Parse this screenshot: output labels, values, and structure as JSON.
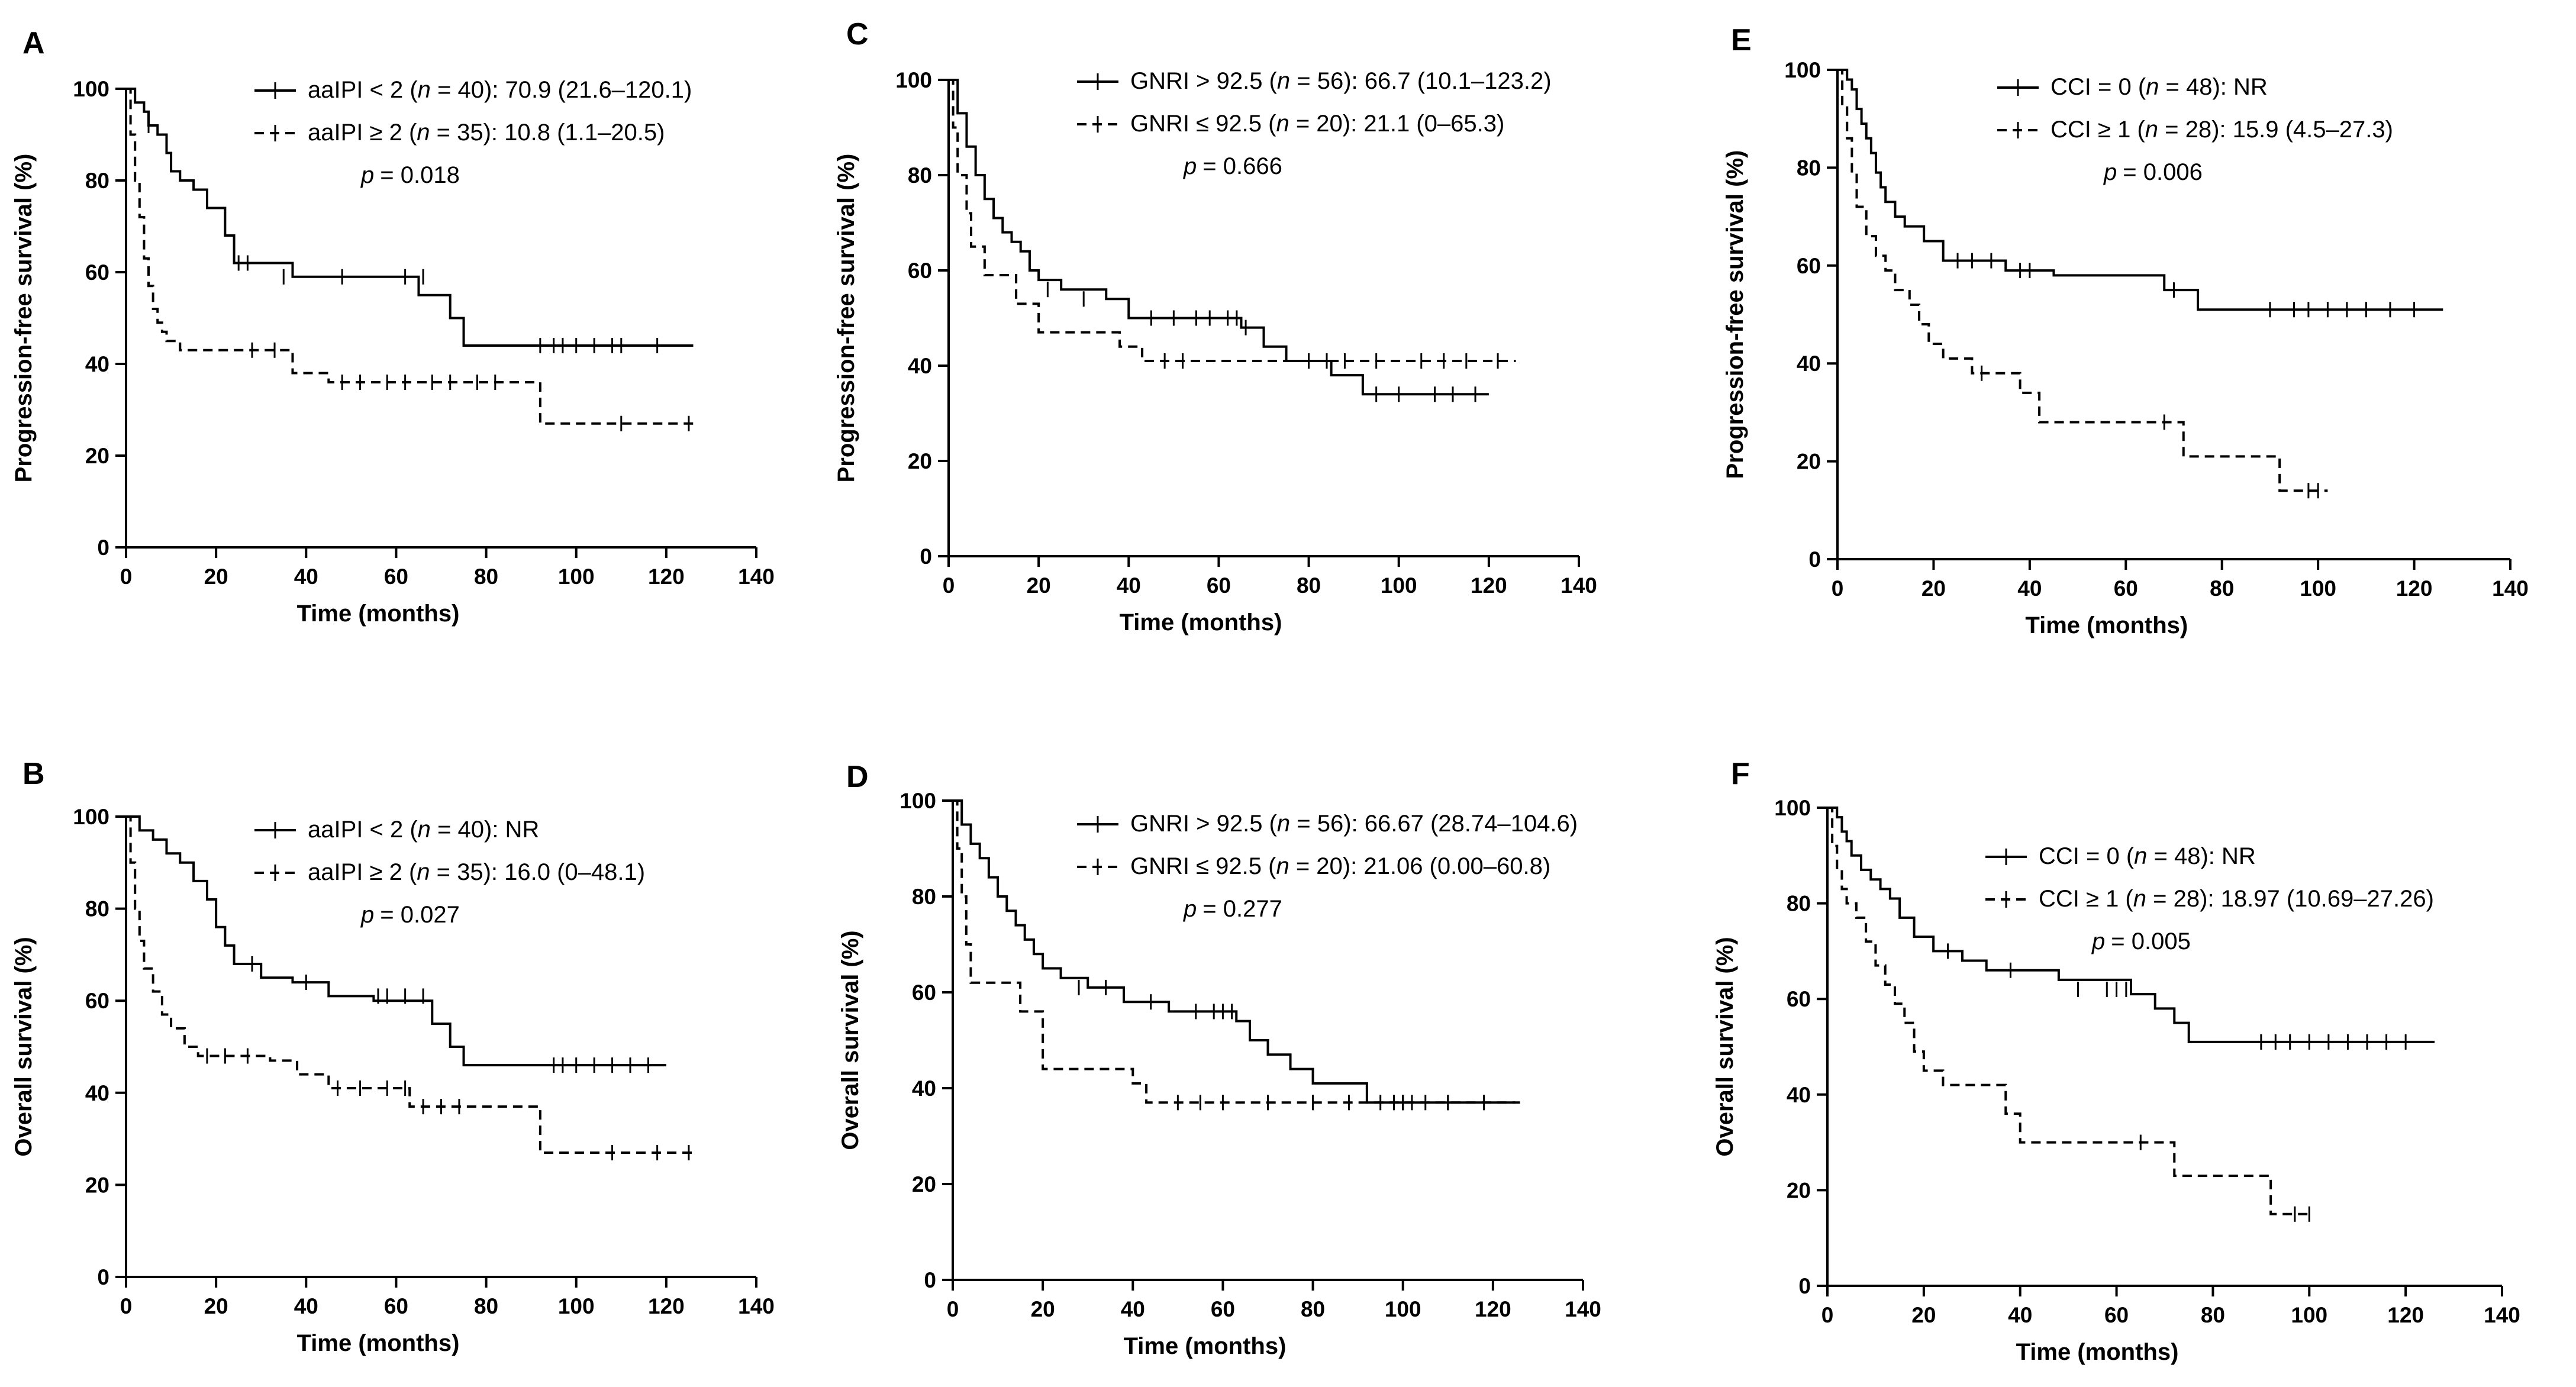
{
  "chart_data": [
    {
      "panel": "A",
      "type": "line",
      "ylabel": "Progression-free survival (%)",
      "xlabel": "Time (months)",
      "xlim": [
        0,
        140
      ],
      "ylim": [
        0,
        100
      ],
      "xticks": [
        0,
        20,
        40,
        60,
        80,
        100,
        120,
        140
      ],
      "yticks": [
        0,
        20,
        40,
        60,
        80,
        100
      ],
      "legend": [
        "aaIPI < 2 (",
        "n",
        " = 40): 70.9 (21.6–120.1)",
        "aaIPI ≥ 2 (",
        "n",
        " = 35): 10.8 (1.1–20.5)"
      ],
      "pvalue": "= 0.018",
      "series": [
        {
          "style": "solid",
          "x": [
            0,
            2,
            4,
            5,
            7,
            9,
            10,
            12,
            15,
            18,
            22,
            24,
            37,
            65,
            72,
            75,
            126
          ],
          "y": [
            100,
            97,
            95,
            92,
            90,
            86,
            82,
            80,
            78,
            74,
            68,
            62,
            59,
            55,
            50,
            44,
            44
          ],
          "censor_x": [
            5,
            25,
            27,
            35,
            48,
            62,
            66,
            92,
            95,
            97,
            100,
            104,
            108,
            110,
            118
          ],
          "censor_y": [
            92,
            62,
            62,
            59,
            59,
            59,
            59,
            44,
            44,
            44,
            44,
            44,
            44,
            44,
            44
          ]
        },
        {
          "style": "dashed",
          "x": [
            0,
            1,
            2,
            3,
            4,
            5,
            6,
            7,
            8,
            9,
            12,
            15,
            37,
            45,
            92,
            126
          ],
          "y": [
            100,
            90,
            80,
            72,
            63,
            57,
            52,
            49,
            47,
            45,
            43,
            43,
            38,
            36,
            27,
            27
          ],
          "censor_x": [
            28,
            33,
            48,
            52,
            58,
            62,
            68,
            72,
            78,
            82,
            110,
            125
          ],
          "censor_y": [
            43,
            43,
            36,
            36,
            36,
            36,
            36,
            36,
            36,
            36,
            27,
            27
          ]
        }
      ]
    },
    {
      "panel": "B",
      "type": "line",
      "ylabel": "Overall survival (%)",
      "xlabel": "Time (months)",
      "xlim": [
        0,
        140
      ],
      "ylim": [
        0,
        100
      ],
      "xticks": [
        0,
        20,
        40,
        60,
        80,
        100,
        120,
        140
      ],
      "yticks": [
        0,
        20,
        40,
        60,
        80,
        100
      ],
      "legend": [
        "aaIPI < 2 (",
        "n",
        " = 40): NR",
        "aaIPI ≥ 2 (",
        "n",
        " = 35): 16.0 (0–48.1)"
      ],
      "pvalue": "= 0.027",
      "series": [
        {
          "style": "solid",
          "x": [
            0,
            3,
            6,
            9,
            12,
            15,
            18,
            20,
            22,
            24,
            30,
            37,
            45,
            55,
            68,
            72,
            75,
            120
          ],
          "y": [
            100,
            97,
            95,
            92,
            90,
            86,
            82,
            76,
            72,
            68,
            65,
            64,
            61,
            60,
            55,
            50,
            46,
            46
          ],
          "censor_x": [
            28,
            40,
            56,
            58,
            62,
            66,
            95,
            97,
            100,
            104,
            108,
            112,
            116
          ],
          "censor_y": [
            68,
            64,
            61,
            61,
            61,
            61,
            46,
            46,
            46,
            46,
            46,
            46,
            46
          ]
        },
        {
          "style": "dashed",
          "x": [
            0,
            1,
            2,
            3,
            4,
            6,
            8,
            10,
            13,
            16,
            32,
            38,
            45,
            63,
            92,
            126
          ],
          "y": [
            100,
            90,
            80,
            73,
            67,
            62,
            57,
            54,
            50,
            48,
            47,
            44,
            41,
            37,
            27,
            27
          ],
          "censor_x": [
            18,
            22,
            27,
            47,
            52,
            58,
            62,
            66,
            70,
            74,
            108,
            118,
            125
          ],
          "censor_y": [
            48,
            48,
            48,
            41,
            41,
            41,
            41,
            37,
            37,
            37,
            27,
            27,
            27
          ]
        }
      ]
    },
    {
      "panel": "C",
      "type": "line",
      "ylabel": "Progression-free survival (%)",
      "xlabel": "Time (months)",
      "xlim": [
        0,
        140
      ],
      "ylim": [
        0,
        100
      ],
      "xticks": [
        0,
        20,
        40,
        60,
        80,
        100,
        120,
        140
      ],
      "yticks": [
        0,
        20,
        40,
        60,
        80,
        100
      ],
      "legend": [
        "GNRI > 92.5 (",
        "n",
        " = 56): 66.7 (10.1–123.2)",
        "GNRI ≤ 92.5 (",
        "n",
        " = 20): 21.1 (0–65.3)"
      ],
      "pvalue": "= 0.666",
      "series": [
        {
          "style": "solid",
          "x": [
            0,
            2,
            4,
            6,
            8,
            10,
            12,
            14,
            16,
            18,
            20,
            25,
            35,
            40,
            65,
            70,
            75,
            85,
            92,
            120
          ],
          "y": [
            100,
            93,
            86,
            80,
            75,
            71,
            68,
            66,
            64,
            60,
            58,
            56,
            54,
            50,
            48,
            44,
            41,
            38,
            34,
            34
          ],
          "censor_x": [
            22,
            30,
            45,
            50,
            55,
            58,
            62,
            64,
            66,
            95,
            100,
            108,
            112,
            117
          ],
          "censor_y": [
            56,
            54,
            50,
            50,
            50,
            50,
            50,
            50,
            48,
            34,
            34,
            34,
            34,
            34
          ]
        },
        {
          "style": "dashed",
          "x": [
            0,
            1,
            2,
            4,
            5,
            8,
            15,
            20,
            38,
            43,
            126
          ],
          "y": [
            100,
            90,
            80,
            72,
            65,
            59,
            53,
            47,
            44,
            41,
            41
          ],
          "censor_x": [
            48,
            52,
            80,
            84,
            88,
            95,
            105,
            110,
            115,
            122
          ],
          "censor_y": [
            41,
            41,
            41,
            41,
            41,
            41,
            41,
            41,
            41,
            41
          ]
        }
      ]
    },
    {
      "panel": "D",
      "type": "line",
      "ylabel": "Overall survival (%)",
      "xlabel": "Time (months)",
      "xlim": [
        0,
        140
      ],
      "ylim": [
        0,
        100
      ],
      "xticks": [
        0,
        20,
        40,
        60,
        80,
        100,
        120,
        140
      ],
      "yticks": [
        0,
        20,
        40,
        60,
        80,
        100
      ],
      "legend": [
        "GNRI > 92.5 (",
        "n",
        " = 56): 66.67 (28.74–104.6)",
        "GNRI ≤ 92.5 (",
        "n",
        " = 20): 21.06 (0.00–60.8)"
      ],
      "pvalue": "= 0.277",
      "series": [
        {
          "style": "solid",
          "x": [
            0,
            2,
            4,
            6,
            8,
            10,
            12,
            14,
            16,
            18,
            20,
            24,
            30,
            38,
            48,
            63,
            66,
            70,
            75,
            80,
            92,
            125
          ],
          "y": [
            100,
            95,
            91,
            88,
            84,
            80,
            77,
            74,
            71,
            68,
            65,
            63,
            61,
            58,
            56,
            54,
            50,
            47,
            44,
            41,
            37,
            37
          ],
          "censor_x": [
            28,
            34,
            44,
            54,
            58,
            60,
            62,
            95,
            98,
            100,
            102,
            105,
            110
          ],
          "censor_y": [
            61,
            61,
            58,
            56,
            56,
            56,
            56,
            37,
            37,
            37,
            37,
            37,
            37
          ]
        },
        {
          "style": "dashed",
          "x": [
            0,
            1,
            2,
            3,
            4,
            6,
            15,
            20,
            40,
            43,
            126
          ],
          "y": [
            100,
            90,
            80,
            70,
            62,
            62,
            56,
            44,
            41,
            37,
            37
          ],
          "censor_x": [
            50,
            55,
            60,
            70,
            80,
            88,
            100,
            110,
            118
          ],
          "censor_y": [
            37,
            37,
            37,
            37,
            37,
            37,
            37,
            37,
            37
          ]
        }
      ]
    },
    {
      "panel": "E",
      "type": "line",
      "ylabel": "Progression-free survival (%)",
      "xlabel": "Time (months)",
      "xlim": [
        0,
        140
      ],
      "ylim": [
        0,
        100
      ],
      "xticks": [
        0,
        20,
        40,
        60,
        80,
        100,
        120,
        140
      ],
      "yticks": [
        0,
        20,
        40,
        60,
        80,
        100
      ],
      "legend": [
        "CCI = 0 (",
        "n",
        " = 48): NR",
        "CCI ≥ 1 (",
        "n",
        " = 28): 15.9 (4.5–27.3)"
      ],
      "pvalue": "= 0.006",
      "series": [
        {
          "style": "solid",
          "x": [
            0,
            2,
            3,
            4,
            5,
            6,
            7,
            8,
            9,
            10,
            12,
            14,
            18,
            22,
            35,
            45,
            65,
            68,
            75,
            126
          ],
          "y": [
            100,
            98,
            96,
            92,
            89,
            86,
            83,
            79,
            76,
            73,
            70,
            68,
            65,
            61,
            59,
            58,
            58,
            55,
            51,
            51
          ],
          "censor_x": [
            25,
            28,
            32,
            38,
            40,
            70,
            90,
            95,
            98,
            102,
            106,
            110,
            115,
            120
          ],
          "censor_y": [
            61,
            61,
            61,
            59,
            59,
            55,
            51,
            51,
            51,
            51,
            51,
            51,
            51,
            51
          ]
        },
        {
          "style": "dashed",
          "x": [
            0,
            1,
            2,
            3,
            4,
            6,
            8,
            10,
            12,
            15,
            17,
            19,
            22,
            28,
            38,
            42,
            65,
            72,
            92,
            102
          ],
          "y": [
            100,
            93,
            86,
            79,
            72,
            66,
            62,
            59,
            55,
            52,
            48,
            44,
            41,
            38,
            34,
            28,
            28,
            21,
            14,
            14
          ],
          "censor_x": [
            30,
            68,
            98,
            100
          ],
          "censor_y": [
            38,
            28,
            14,
            14
          ]
        }
      ]
    },
    {
      "panel": "F",
      "type": "line",
      "ylabel": "Overall survival (%)",
      "xlabel": "Time (months)",
      "xlim": [
        0,
        140
      ],
      "ylim": [
        0,
        100
      ],
      "xticks": [
        0,
        20,
        40,
        60,
        80,
        100,
        120,
        140
      ],
      "yticks": [
        0,
        20,
        40,
        60,
        80,
        100
      ],
      "legend": [
        "CCI = 0 (",
        "n",
        " = 48): NR",
        "CCI ≥ 1 (",
        "n",
        " = 28): 18.97 (10.69–27.26)"
      ],
      "pvalue": "= 0.005",
      "series": [
        {
          "style": "solid",
          "x": [
            0,
            2,
            3,
            4,
            5,
            7,
            9,
            11,
            13,
            15,
            18,
            22,
            28,
            33,
            48,
            63,
            68,
            72,
            75,
            126
          ],
          "y": [
            100,
            98,
            95,
            93,
            90,
            87,
            85,
            83,
            81,
            77,
            73,
            70,
            68,
            66,
            64,
            61,
            58,
            55,
            51,
            51
          ],
          "censor_x": [
            25,
            38,
            52,
            58,
            60,
            62,
            90,
            93,
            96,
            100,
            104,
            108,
            112,
            116,
            120
          ],
          "censor_y": [
            70,
            66,
            62,
            62,
            62,
            62,
            51,
            51,
            51,
            51,
            51,
            51,
            51,
            51,
            51
          ]
        },
        {
          "style": "dashed",
          "x": [
            0,
            1,
            2,
            3,
            4,
            6,
            8,
            10,
            12,
            14,
            16,
            18,
            20,
            24,
            33,
            37,
            40,
            68,
            72,
            92,
            100
          ],
          "y": [
            100,
            92,
            87,
            83,
            80,
            77,
            72,
            67,
            63,
            59,
            55,
            49,
            45,
            42,
            42,
            36,
            30,
            30,
            23,
            15,
            15
          ],
          "censor_x": [
            65,
            97,
            100
          ],
          "censor_y": [
            30,
            15,
            15
          ]
        }
      ]
    }
  ]
}
